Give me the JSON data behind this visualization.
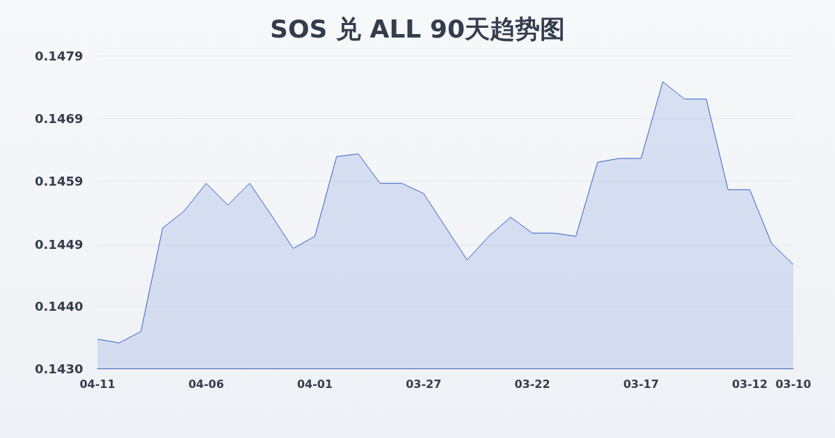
{
  "chart_data": {
    "type": "area",
    "title": "SOS 兑 ALL 90天趋势图",
    "categories": [
      "04-11",
      null,
      null,
      null,
      null,
      "04-06",
      null,
      null,
      null,
      null,
      "04-01",
      null,
      null,
      null,
      null,
      "03-27",
      null,
      null,
      null,
      null,
      "03-22",
      null,
      null,
      null,
      null,
      "03-17",
      null,
      null,
      null,
      null,
      "03-12",
      null,
      "03-10"
    ],
    "values": [
      0.14346,
      0.1434,
      0.14358,
      0.1452,
      0.14547,
      0.1459,
      0.14556,
      0.1459,
      0.1454,
      0.14488,
      0.14507,
      0.14632,
      0.14636,
      0.1459,
      0.1459,
      0.14574,
      0.14522,
      0.1447,
      0.14507,
      0.14537,
      0.14512,
      0.14512,
      0.14507,
      0.14623,
      0.14629,
      0.14629,
      0.14749,
      0.14722,
      0.14722,
      0.1458,
      0.1458,
      0.14496,
      0.14463
    ],
    "color": "#2f5fc8",
    "ylim": [
      0.143,
      0.1479
    ],
    "yticks": [
      {
        "value": 0.143,
        "label": "0.1430"
      },
      {
        "value": 0.14398,
        "label": "0.1440"
      },
      {
        "value": 0.14494,
        "label": "0.1449"
      },
      {
        "value": 0.14594,
        "label": "0.1459"
      },
      {
        "value": 0.14692,
        "label": "0.1469"
      },
      {
        "value": 0.1479,
        "label": "0.1479"
      }
    ],
    "grid": "y"
  }
}
